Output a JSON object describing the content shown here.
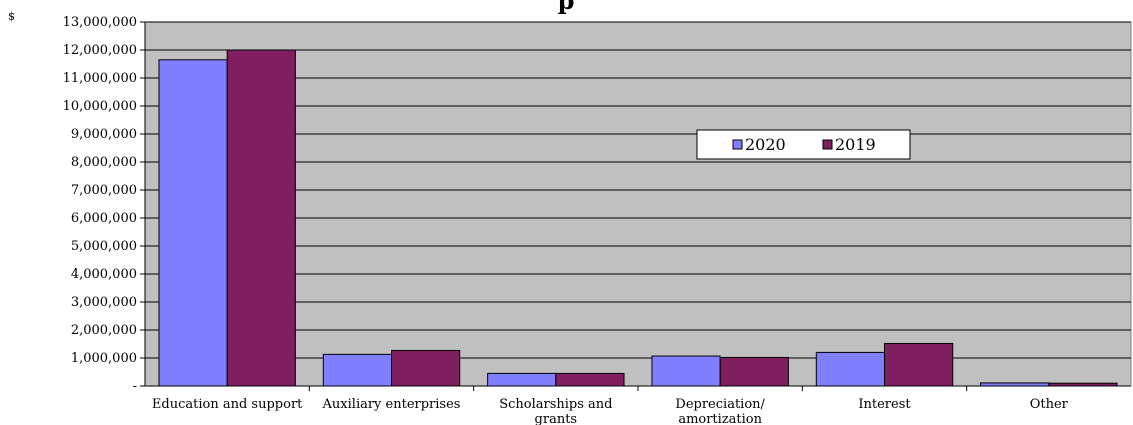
{
  "chart_data": {
    "type": "bar",
    "title_fragment": "p",
    "unit_label": "$",
    "categories": [
      [
        "Education and support"
      ],
      [
        "Auxiliary enterprises"
      ],
      [
        "Scholarships and",
        "grants"
      ],
      [
        "Depreciation/",
        "amortization"
      ],
      [
        "Interest"
      ],
      [
        "Other"
      ]
    ],
    "series": [
      {
        "name": "2020",
        "color": "#8080ff",
        "values": [
          11650000,
          1130000,
          450000,
          1070000,
          1200000,
          110000
        ]
      },
      {
        "name": "2019",
        "color": "#7f1f5f",
        "values": [
          12000000,
          1270000,
          450000,
          1020000,
          1520000,
          100000
        ]
      }
    ],
    "ylim": [
      0,
      13000000
    ],
    "ytick_step": 1000000,
    "ytick_labels": [
      "-",
      "1,000,000",
      "2,000,000",
      "3,000,000",
      "4,000,000",
      "5,000,000",
      "6,000,000",
      "7,000,000",
      "8,000,000",
      "9,000,000",
      "10,000,000",
      "11,000,000",
      "12,000,000",
      "13,000,000"
    ],
    "plot_background": "#c0c0c0",
    "grid": true,
    "legend_position": "inside-upper-right"
  }
}
